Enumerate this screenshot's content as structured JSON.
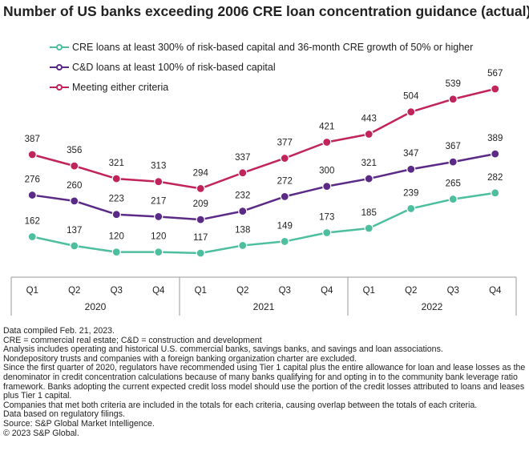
{
  "title": "Number of US banks exceeding 2006 CRE loan concentration guidance (actual)",
  "colors": {
    "cre": "#4dbf9e",
    "cd": "#5b2a86",
    "either": "#c0245b",
    "axis": "#9a9a9a",
    "text": "#222222"
  },
  "chart_data": {
    "type": "line",
    "title": "Number of US banks exceeding 2006 CRE loan concentration guidance (actual)",
    "categories": [
      "Q1",
      "Q2",
      "Q3",
      "Q4",
      "Q1",
      "Q2",
      "Q3",
      "Q4",
      "Q1",
      "Q2",
      "Q3",
      "Q4"
    ],
    "groups": [
      {
        "label": "2020",
        "start": 0,
        "end": 3
      },
      {
        "label": "2021",
        "start": 4,
        "end": 7
      },
      {
        "label": "2022",
        "start": 8,
        "end": 11
      }
    ],
    "ylim": [
      90,
      600
    ],
    "grid": false,
    "legend": "top-left",
    "series": [
      {
        "key": "cre",
        "name": "CRE loans at least 300% of risk-based capital and 36-month CRE growth of 50% or higher",
        "values": [
          162,
          137,
          120,
          120,
          117,
          138,
          149,
          173,
          185,
          239,
          265,
          282
        ]
      },
      {
        "key": "cd",
        "name": "C&D loans at least 100% of risk-based capital",
        "values": [
          276,
          260,
          223,
          217,
          209,
          232,
          272,
          300,
          321,
          347,
          367,
          389
        ]
      },
      {
        "key": "either",
        "name": "Meeting either criteria",
        "values": [
          387,
          356,
          321,
          313,
          294,
          337,
          377,
          421,
          443,
          504,
          539,
          567
        ]
      }
    ]
  },
  "notes": [
    "Data compiled Feb. 21, 2023.",
    "CRE = commercial real estate; C&D = construction and development",
    "Analysis includes operating and historical U.S. commercial banks, savings banks, and savings and loan associations.",
    "Nondepository trusts and companies with a foreign banking organization charter are excluded.",
    "Since the first quarter of 2020, regulators have recommended using Tier 1 capital plus the entire allowance for loan and lease losses as the denominator in credit concentration calculations because of many banks qualifying for and opting in to the community bank leverage ratio framework. Banks adopting the current expected credit loss model should use the portion of the credit losses attributed to loans and leases plus Tier 1 capital.",
    "Companies that met both criteria are included in the totals for each criteria, causing overlap between the totals of each criteria.",
    "Data based on regulatory filings.",
    "Source: S&P Global Market Intelligence.",
    "© 2023 S&P Global."
  ]
}
